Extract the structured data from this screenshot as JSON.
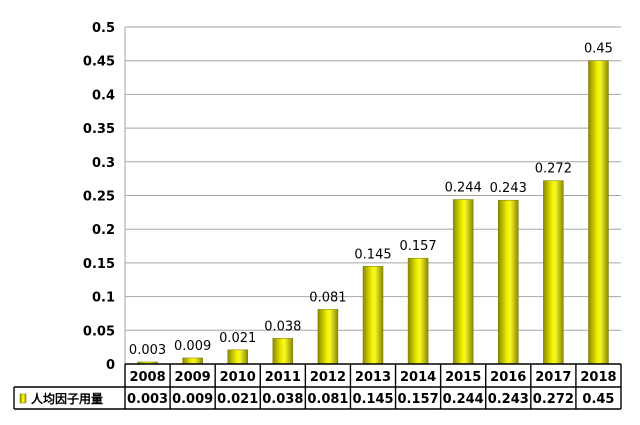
{
  "chart_data": {
    "type": "bar",
    "categories": [
      "2008",
      "2009",
      "2010",
      "2011",
      "2012",
      "2013",
      "2014",
      "2015",
      "2016",
      "2017",
      "2018"
    ],
    "series": [
      {
        "name": "人均因子用量",
        "values": [
          0.003,
          0.009,
          0.021,
          0.038,
          0.081,
          0.145,
          0.157,
          0.244,
          0.243,
          0.272,
          0.45
        ],
        "labels": [
          "0.003",
          "0.009",
          "0.021",
          "0.038",
          "0.081",
          "0.145",
          "0.157",
          "0.244",
          "0.243",
          "0.272",
          "0.45"
        ],
        "color": "#d4d400"
      }
    ],
    "y_ticks": [
      "0",
      "0.05",
      "0.1",
      "0.15",
      "0.2",
      "0.25",
      "0.3",
      "0.35",
      "0.4",
      "0.45",
      "0.5"
    ],
    "ylim": [
      0,
      0.5
    ],
    "grid": true,
    "data_table": true,
    "title": "",
    "xlabel": "",
    "ylabel": ""
  }
}
